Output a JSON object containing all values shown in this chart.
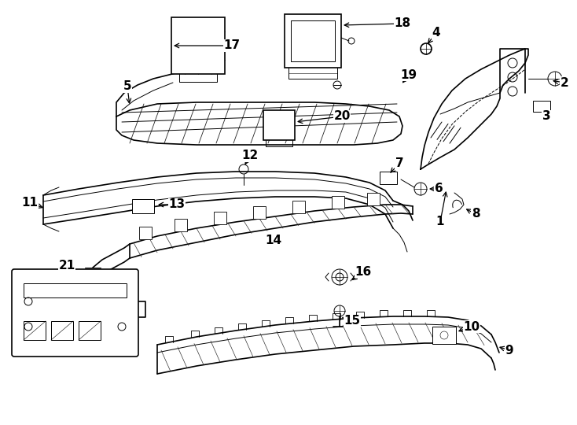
{
  "bg": "#ffffff",
  "lc": "#000000",
  "fig_w": 7.34,
  "fig_h": 5.4,
  "dpi": 100,
  "fs": 11
}
